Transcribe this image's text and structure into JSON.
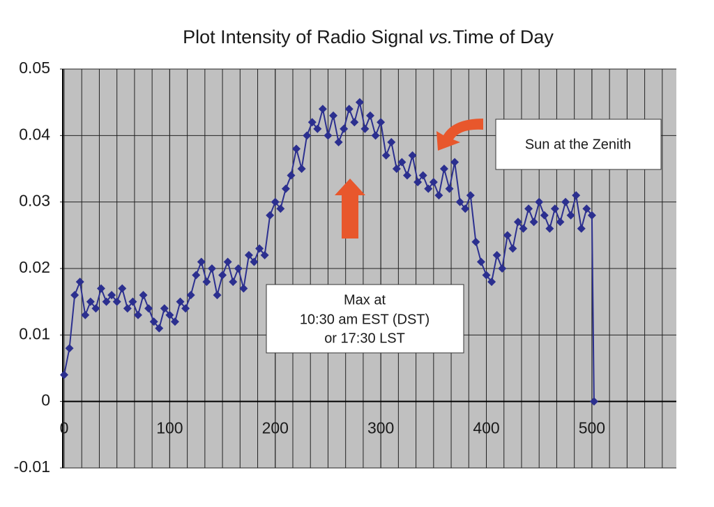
{
  "chart_data": {
    "type": "line",
    "title_parts": [
      "Plot Intensity of Radio Signal ",
      "vs.",
      "Time of Day"
    ],
    "xlim": [
      0,
      580
    ],
    "xticks": [
      0,
      100,
      200,
      300,
      400,
      500
    ],
    "x_minor_divisions": 6,
    "ylim": [
      -0.01,
      0.05
    ],
    "yticks": [
      -0.01,
      0,
      0.01,
      0.02,
      0.03,
      0.04,
      0.05
    ],
    "grid": true,
    "series": [
      {
        "color": "#2b2f8f",
        "x": [
          0,
          5,
          10,
          15,
          20,
          25,
          30,
          35,
          40,
          45,
          50,
          55,
          60,
          65,
          70,
          75,
          80,
          85,
          90,
          95,
          100,
          105,
          110,
          115,
          120,
          125,
          130,
          135,
          140,
          145,
          150,
          155,
          160,
          165,
          170,
          175,
          180,
          185,
          190,
          195,
          200,
          205,
          210,
          215,
          220,
          225,
          230,
          235,
          240,
          245,
          250,
          255,
          260,
          265,
          270,
          275,
          280,
          285,
          290,
          295,
          300,
          305,
          310,
          315,
          320,
          325,
          330,
          335,
          340,
          345,
          350,
          355,
          360,
          365,
          370,
          375,
          380,
          385,
          390,
          395,
          400,
          405,
          410,
          415,
          420,
          425,
          430,
          435,
          440,
          445,
          450,
          455,
          460,
          465,
          470,
          475,
          480,
          485,
          490,
          495,
          500,
          502
        ],
        "values": [
          0.004,
          0.008,
          0.016,
          0.018,
          0.013,
          0.015,
          0.014,
          0.017,
          0.015,
          0.016,
          0.015,
          0.017,
          0.014,
          0.015,
          0.013,
          0.016,
          0.014,
          0.012,
          0.011,
          0.014,
          0.013,
          0.012,
          0.015,
          0.014,
          0.016,
          0.019,
          0.021,
          0.018,
          0.02,
          0.016,
          0.019,
          0.021,
          0.018,
          0.02,
          0.017,
          0.022,
          0.021,
          0.023,
          0.022,
          0.028,
          0.03,
          0.029,
          0.032,
          0.034,
          0.038,
          0.035,
          0.04,
          0.042,
          0.041,
          0.044,
          0.04,
          0.043,
          0.039,
          0.041,
          0.044,
          0.042,
          0.045,
          0.041,
          0.043,
          0.04,
          0.042,
          0.037,
          0.039,
          0.035,
          0.036,
          0.034,
          0.037,
          0.033,
          0.034,
          0.032,
          0.033,
          0.031,
          0.035,
          0.032,
          0.036,
          0.03,
          0.029,
          0.031,
          0.024,
          0.021,
          0.019,
          0.018,
          0.022,
          0.02,
          0.025,
          0.023,
          0.027,
          0.026,
          0.029,
          0.027,
          0.03,
          0.028,
          0.026,
          0.029,
          0.027,
          0.03,
          0.028,
          0.031,
          0.026,
          0.029,
          0.028,
          0
        ]
      }
    ],
    "annotations": {
      "max": [
        "Max at",
        "10:30 am EST (DST)",
        "or 17:30 LST"
      ],
      "zenith": "Sun at the Zenith"
    }
  }
}
